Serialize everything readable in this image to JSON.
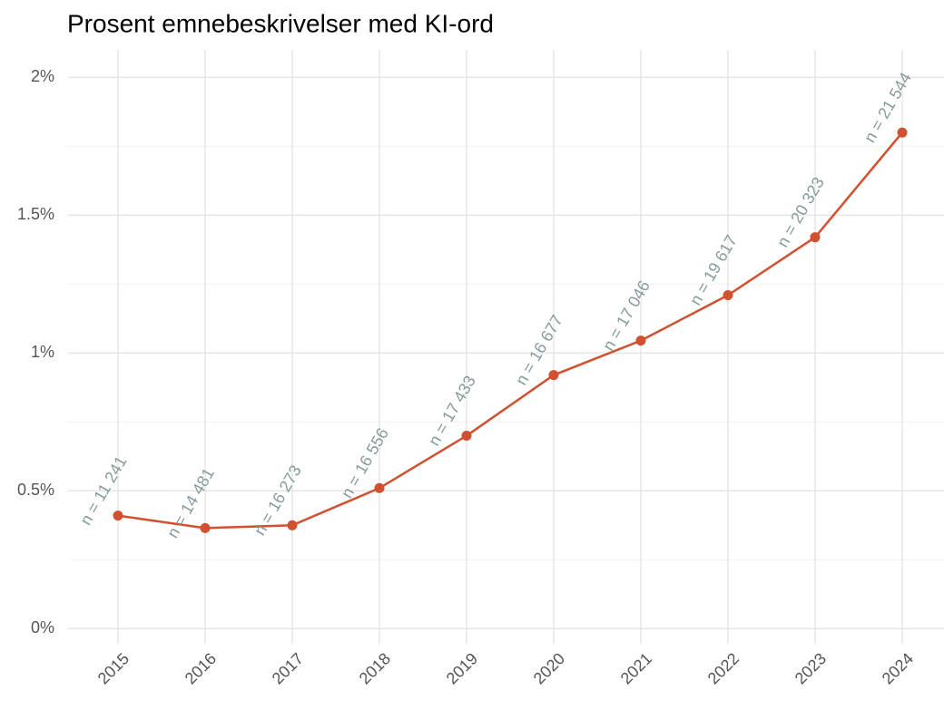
{
  "chart_data": {
    "type": "line",
    "title": "Prosent emnebeskrivelser med KI-ord",
    "categories": [
      "2015",
      "2016",
      "2017",
      "2018",
      "2019",
      "2020",
      "2021",
      "2022",
      "2023",
      "2024"
    ],
    "series": [
      {
        "color": "#d1502f",
        "values": [
          0.41,
          0.365,
          0.375,
          0.51,
          0.7,
          0.92,
          1.045,
          1.21,
          1.42,
          1.8
        ]
      }
    ],
    "annotations": [
      "n = 11 241",
      "n = 14 481",
      "n = 16 273",
      "n = 16 556",
      "n = 17 433",
      "n = 16 677",
      "n = 17 046",
      "n = 19 617",
      "n = 20 323",
      "n = 21 544"
    ],
    "ylim": [
      -0.055,
      2.1
    ],
    "yticks": [
      {
        "value": 0,
        "label": "0%"
      },
      {
        "value": 0.5,
        "label": "0.5%"
      },
      {
        "value": 1,
        "label": "1%"
      },
      {
        "value": 1.5,
        "label": "1.5%"
      },
      {
        "value": 2,
        "label": "2%"
      }
    ],
    "minor_yticks": [
      0.25,
      0.75,
      1.25,
      1.75
    ],
    "grid": true
  }
}
